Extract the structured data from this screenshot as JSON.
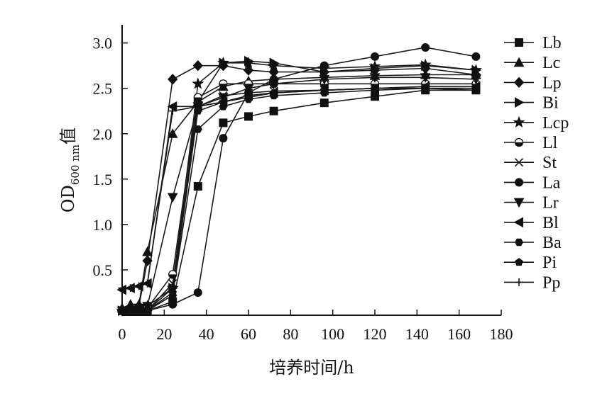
{
  "chart_data": {
    "type": "line",
    "xlabel": "培养时间/h",
    "ylabel": {
      "main": "OD",
      "subscript": "600 nm",
      "suffix": "值"
    },
    "xlim": [
      0,
      180
    ],
    "ylim": [
      0,
      3.2
    ],
    "x_ticks": [
      0,
      20,
      40,
      60,
      80,
      100,
      120,
      140,
      160,
      180
    ],
    "y_ticks": [
      0.5,
      1.0,
      1.5,
      2.0,
      2.5,
      3.0
    ],
    "y_tick_labels": [
      "0.5",
      "1.0",
      "1.5",
      "2.0",
      "2.5",
      "3.0"
    ],
    "grid": false,
    "legend_position": "right",
    "series": [
      {
        "name": "Lb",
        "marker": "square",
        "x": [
          0,
          4,
          8,
          12,
          24,
          36,
          48,
          60,
          72,
          96,
          120,
          144,
          168
        ],
        "y": [
          0.05,
          0.05,
          0.05,
          0.05,
          0.15,
          1.42,
          2.12,
          2.19,
          2.25,
          2.34,
          2.41,
          2.48,
          2.48
        ]
      },
      {
        "name": "Lc",
        "marker": "triangle-up",
        "x": [
          0,
          4,
          8,
          12,
          24,
          36,
          48,
          60,
          72,
          96,
          120,
          144,
          168
        ],
        "y": [
          0.08,
          0.12,
          0.12,
          0.7,
          2.0,
          2.35,
          2.52,
          2.58,
          2.6,
          2.62,
          2.64,
          2.65,
          2.65
        ]
      },
      {
        "name": "Lp",
        "marker": "diamond",
        "x": [
          0,
          4,
          8,
          12,
          24,
          36,
          48,
          60,
          72,
          96,
          120,
          144,
          168
        ],
        "y": [
          0.05,
          0.05,
          0.1,
          0.6,
          2.6,
          2.75,
          2.75,
          2.7,
          2.68,
          2.68,
          2.7,
          2.72,
          2.65
        ]
      },
      {
        "name": "Bi",
        "marker": "triangle-right",
        "x": [
          0,
          4,
          8,
          12,
          24,
          36,
          48,
          60,
          72,
          96,
          120,
          144,
          168
        ],
        "y": [
          0.05,
          0.05,
          0.05,
          0.05,
          0.3,
          2.35,
          2.78,
          2.8,
          2.78,
          2.68,
          2.72,
          2.75,
          2.7
        ]
      },
      {
        "name": "Lcp",
        "marker": "star",
        "x": [
          0,
          4,
          8,
          12,
          24,
          36,
          48,
          60,
          72,
          96,
          120,
          144,
          168
        ],
        "y": [
          0.05,
          0.05,
          0.08,
          0.1,
          0.3,
          2.55,
          2.78,
          2.78,
          2.75,
          2.72,
          2.74,
          2.76,
          2.7
        ]
      },
      {
        "name": "Ll",
        "marker": "half-circle",
        "x": [
          0,
          4,
          8,
          12,
          24,
          36,
          48,
          60,
          72,
          96,
          120,
          144,
          168
        ],
        "y": [
          0.05,
          0.05,
          0.05,
          0.08,
          0.45,
          2.4,
          2.55,
          2.55,
          2.55,
          2.55,
          2.55,
          2.55,
          2.55
        ]
      },
      {
        "name": "St",
        "marker": "x",
        "x": [
          0,
          4,
          8,
          12,
          24,
          36,
          48,
          60,
          72,
          96,
          120,
          144,
          168
        ],
        "y": [
          0.05,
          0.05,
          0.05,
          0.05,
          0.35,
          2.3,
          2.42,
          2.45,
          2.47,
          2.48,
          2.5,
          2.5,
          2.5
        ]
      },
      {
        "name": "La",
        "marker": "circle",
        "x": [
          0,
          4,
          8,
          12,
          24,
          36,
          48,
          60,
          72,
          96,
          120,
          144,
          168
        ],
        "y": [
          0.05,
          0.05,
          0.05,
          0.05,
          0.12,
          0.25,
          1.95,
          2.45,
          2.6,
          2.75,
          2.85,
          2.95,
          2.85
        ]
      },
      {
        "name": "Lr",
        "marker": "triangle-down",
        "x": [
          0,
          4,
          8,
          12,
          24,
          36,
          48,
          60,
          72,
          96,
          120,
          144,
          168
        ],
        "y": [
          0.05,
          0.05,
          0.08,
          0.1,
          1.3,
          2.3,
          2.4,
          2.5,
          2.55,
          2.6,
          2.62,
          2.62,
          2.6
        ]
      },
      {
        "name": "Bl",
        "marker": "triangle-left",
        "x": [
          0,
          4,
          8,
          12,
          24,
          36,
          48,
          60,
          72,
          96,
          120,
          144,
          168
        ],
        "y": [
          0.28,
          0.3,
          0.32,
          0.35,
          2.3,
          2.3,
          2.35,
          2.42,
          2.45,
          2.48,
          2.5,
          2.52,
          2.52
        ]
      },
      {
        "name": "Ba",
        "marker": "hexagon",
        "x": [
          0,
          4,
          8,
          12,
          24,
          36,
          48,
          60,
          72,
          96,
          120,
          144,
          168
        ],
        "y": [
          0.05,
          0.05,
          0.05,
          0.05,
          0.22,
          2.05,
          2.3,
          2.38,
          2.42,
          2.45,
          2.48,
          2.5,
          2.5
        ]
      },
      {
        "name": "Pi",
        "marker": "pentagon",
        "x": [
          0,
          4,
          8,
          12,
          24,
          36,
          48,
          60,
          72,
          96,
          120,
          144,
          168
        ],
        "y": [
          0.05,
          0.05,
          0.05,
          0.05,
          0.25,
          2.25,
          2.35,
          2.4,
          2.45,
          2.48,
          2.5,
          2.5,
          2.48
        ]
      },
      {
        "name": "Pp",
        "marker": "plus",
        "x": [
          0,
          4,
          8,
          12,
          24,
          36,
          48,
          60,
          72,
          96,
          120,
          144,
          168
        ],
        "y": [
          0.3,
          0.3,
          0.32,
          0.35,
          2.25,
          2.3,
          2.35,
          2.42,
          2.45,
          2.48,
          2.5,
          2.5,
          2.5
        ]
      }
    ]
  }
}
